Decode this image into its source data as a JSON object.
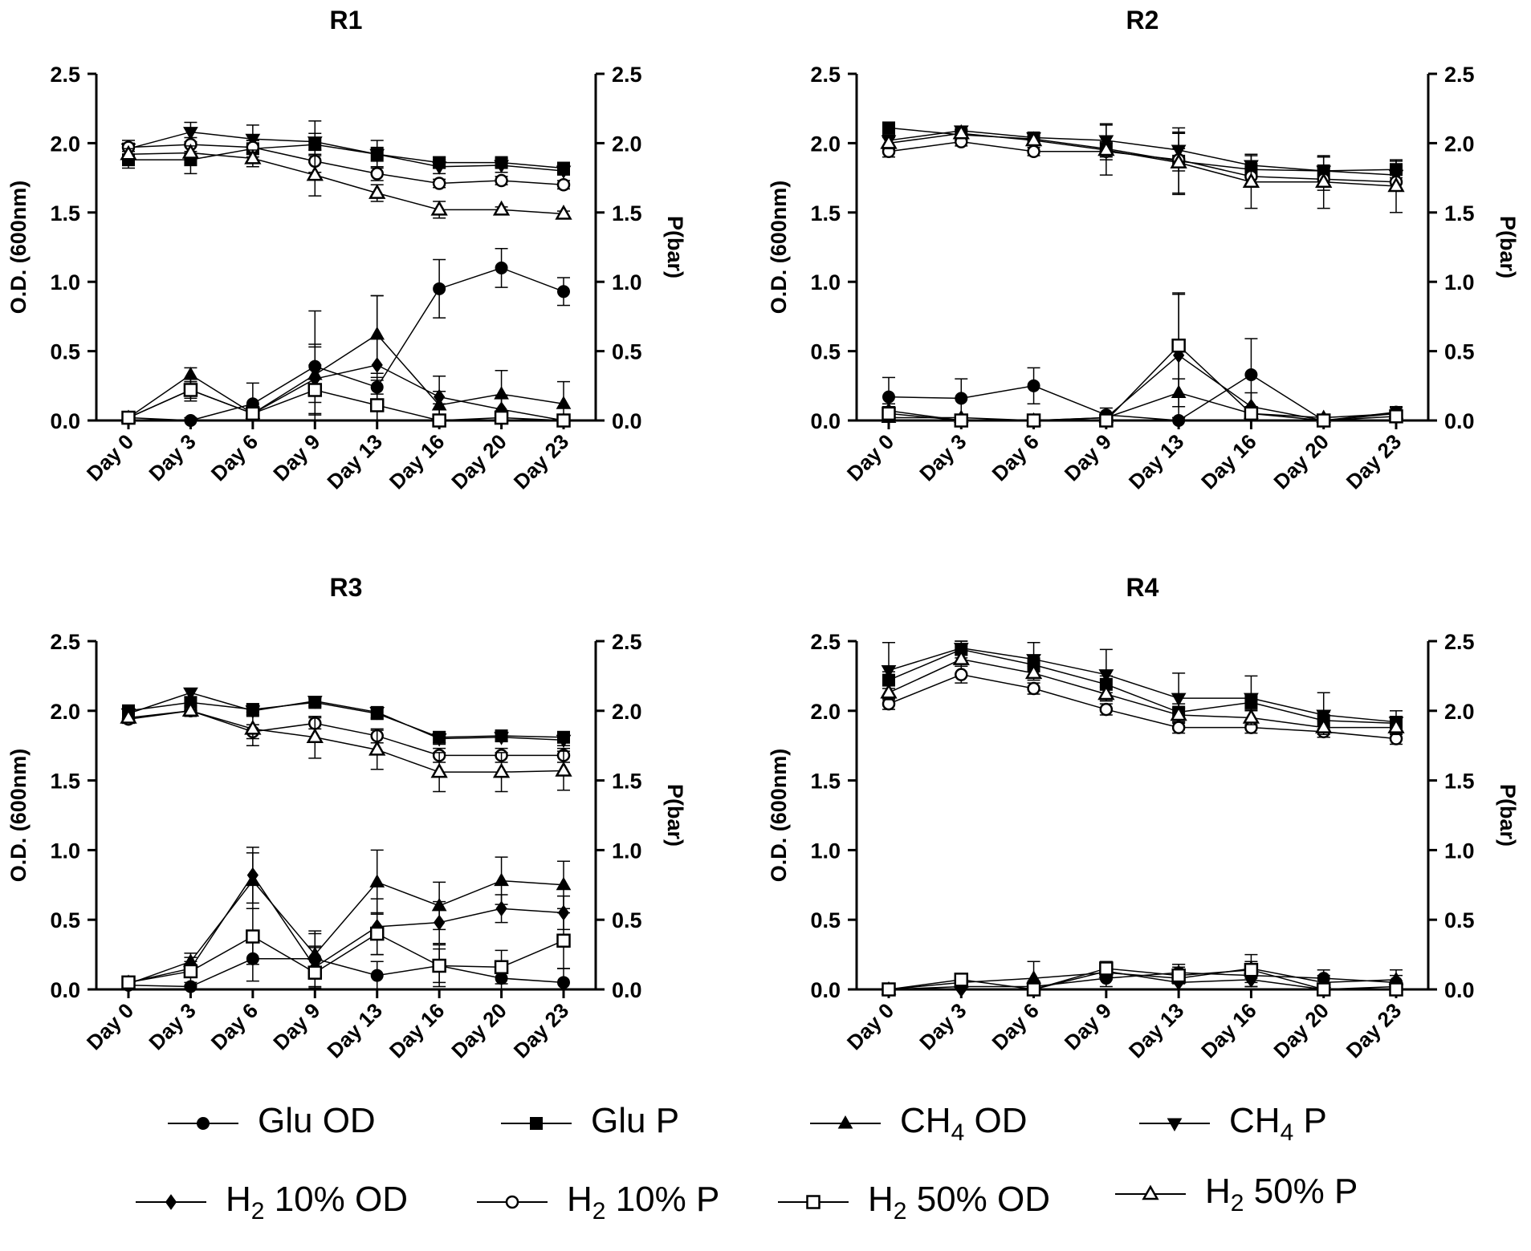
{
  "chart_data": [
    {
      "type": "line",
      "title": "R1",
      "xlabel": "",
      "ylabel": "O.D. (600nm)",
      "y2label": "P(bar)",
      "ylim": [
        0,
        2.5
      ],
      "y2lim": [
        0,
        2.5
      ],
      "yticks": [
        "0.0",
        "0.5",
        "1.0",
        "1.5",
        "2.0",
        "2.5"
      ],
      "categories": [
        "Day 0",
        "Day 3",
        "Day 6",
        "Day 9",
        "Day 13",
        "Day 16",
        "Day 20",
        "Day 23"
      ],
      "series": [
        {
          "name": "Glu OD",
          "marker": "circle",
          "values": [
            0.02,
            0.0,
            0.12,
            0.39,
            0.24,
            0.95,
            1.1,
            0.93
          ],
          "errors": [
            0.02,
            0.02,
            0.15,
            0.4,
            0.05,
            0.21,
            0.14,
            0.1
          ]
        },
        {
          "name": "Glu P",
          "marker": "square",
          "values": [
            1.88,
            1.88,
            1.96,
            1.99,
            1.92,
            1.86,
            1.86,
            1.82
          ],
          "errors": [
            0.06,
            0.1,
            0.06,
            0.08,
            0.05,
            0.04,
            0.03,
            0.03
          ]
        },
        {
          "name": "CH4 OD",
          "marker": "triangle-up",
          "values": [
            0.02,
            0.33,
            0.05,
            0.33,
            0.62,
            0.11,
            0.19,
            0.12
          ],
          "errors": [
            0.02,
            0.05,
            0.05,
            0.2,
            0.28,
            0.1,
            0.17,
            0.16
          ]
        },
        {
          "name": "CH4 P",
          "marker": "triangle-down",
          "values": [
            1.96,
            2.08,
            2.03,
            2.01,
            1.92,
            1.83,
            1.84,
            1.8
          ],
          "errors": [
            0.04,
            0.07,
            0.1,
            0.15,
            0.1,
            0.05,
            0.05,
            0.03
          ]
        },
        {
          "name": "H2 10% OD",
          "marker": "diamond",
          "values": [
            0.02,
            0.22,
            0.05,
            0.3,
            0.4,
            0.17,
            0.08,
            0.0
          ],
          "errors": [
            0.02,
            0.06,
            0.05,
            0.25,
            0.5,
            0.15,
            0.1,
            0.03
          ]
        },
        {
          "name": "H2 10% P",
          "marker": "circle-open",
          "values": [
            1.97,
            1.99,
            1.97,
            1.87,
            1.78,
            1.71,
            1.73,
            1.7
          ],
          "errors": [
            0.05,
            0.05,
            0.05,
            0.08,
            0.05,
            0.03,
            0.03,
            0.03
          ]
        },
        {
          "name": "H2 50% OD",
          "marker": "square-open",
          "values": [
            0.02,
            0.22,
            0.05,
            0.22,
            0.11,
            0.0,
            0.02,
            0.0
          ],
          "errors": [
            0.02,
            0.08,
            0.05,
            0.18,
            0.2,
            0.12,
            0.05,
            0.03
          ]
        },
        {
          "name": "H2 50% P",
          "marker": "triangle-open",
          "values": [
            1.92,
            1.93,
            1.89,
            1.77,
            1.64,
            1.52,
            1.52,
            1.49
          ],
          "errors": [
            0.04,
            0.05,
            0.06,
            0.15,
            0.06,
            0.06,
            0.02,
            0.02
          ]
        }
      ]
    },
    {
      "type": "line",
      "title": "R2",
      "xlabel": "",
      "ylabel": "O.D. (600nm)",
      "y2label": "P(bar)",
      "ylim": [
        0,
        2.5
      ],
      "y2lim": [
        0,
        2.5
      ],
      "yticks": [
        "0.0",
        "0.5",
        "1.0",
        "1.5",
        "2.0",
        "2.5"
      ],
      "categories": [
        "Day 0",
        "Day 3",
        "Day 6",
        "Day 9",
        "Day 13",
        "Day 16",
        "Day 20",
        "Day 23"
      ],
      "series": [
        {
          "name": "Glu OD",
          "marker": "circle",
          "values": [
            0.17,
            0.16,
            0.25,
            0.04,
            0.0,
            0.33,
            0.0,
            0.06
          ],
          "errors": [
            0.14,
            0.14,
            0.13,
            0.05,
            0.02,
            0.26,
            0.02,
            0.04
          ]
        },
        {
          "name": "Glu P",
          "marker": "square",
          "values": [
            2.11,
            2.06,
            2.03,
            1.96,
            1.87,
            1.81,
            1.8,
            1.81
          ],
          "errors": [
            0.04,
            0.03,
            0.04,
            0.05,
            0.24,
            0.06,
            0.1,
            0.06
          ]
        },
        {
          "name": "CH4 OD",
          "marker": "triangle-up",
          "values": [
            0.02,
            0.02,
            0.0,
            0.02,
            0.2,
            0.05,
            0.02,
            0.05
          ],
          "errors": [
            0.02,
            0.02,
            0.02,
            0.02,
            0.1,
            0.05,
            0.02,
            0.04
          ]
        },
        {
          "name": "CH4 P",
          "marker": "triangle-down",
          "values": [
            2.02,
            2.09,
            2.04,
            2.02,
            1.95,
            1.84,
            1.8,
            1.77
          ],
          "errors": [
            0.04,
            0.03,
            0.04,
            0.12,
            0.12,
            0.08,
            0.1,
            0.06
          ]
        },
        {
          "name": "H2 10% OD",
          "marker": "diamond",
          "values": [
            0.07,
            0.0,
            0.0,
            0.02,
            0.47,
            0.1,
            0.0,
            0.05
          ],
          "errors": [
            0.05,
            0.02,
            0.02,
            0.02,
            0.45,
            0.1,
            0.02,
            0.04
          ]
        },
        {
          "name": "H2 10% P",
          "marker": "circle-open",
          "values": [
            1.94,
            2.01,
            1.94,
            1.94,
            1.88,
            1.76,
            1.74,
            1.72
          ],
          "errors": [
            0.04,
            0.03,
            0.03,
            0.06,
            0.08,
            0.06,
            0.08,
            0.05
          ]
        },
        {
          "name": "H2 50% OD",
          "marker": "square-open",
          "values": [
            0.05,
            0.0,
            0.0,
            0.0,
            0.54,
            0.05,
            0.0,
            0.03
          ],
          "errors": [
            0.05,
            0.02,
            0.02,
            0.02,
            0.37,
            0.05,
            0.02,
            0.04
          ]
        },
        {
          "name": "H2 50% P",
          "marker": "triangle-open",
          "values": [
            2.0,
            2.07,
            2.02,
            1.95,
            1.86,
            1.72,
            1.72,
            1.69
          ],
          "errors": [
            0.04,
            0.03,
            0.03,
            0.18,
            0.22,
            0.19,
            0.19,
            0.19
          ]
        }
      ]
    },
    {
      "type": "line",
      "title": "R3",
      "xlabel": "",
      "ylabel": "O.D. (600nm)",
      "y2label": "P(bar)",
      "ylim": [
        0,
        2.5
      ],
      "y2lim": [
        0,
        2.5
      ],
      "yticks": [
        "0.0",
        "0.5",
        "1.0",
        "1.5",
        "2.0",
        "2.5"
      ],
      "categories": [
        "Day 0",
        "Day 3",
        "Day 6",
        "Day 9",
        "Day 13",
        "Day 16",
        "Day 20",
        "Day 23"
      ],
      "series": [
        {
          "name": "Glu OD",
          "marker": "circle",
          "values": [
            0.03,
            0.02,
            0.22,
            0.22,
            0.1,
            0.17,
            0.08,
            0.05
          ],
          "errors": [
            0.02,
            0.03,
            0.16,
            0.2,
            0.1,
            0.12,
            0.08,
            0.1
          ]
        },
        {
          "name": "Glu P",
          "marker": "square",
          "values": [
            2.0,
            2.06,
            2.01,
            2.06,
            1.98,
            1.81,
            1.82,
            1.81
          ],
          "errors": [
            0.03,
            0.04,
            0.04,
            0.03,
            0.04,
            0.04,
            0.03,
            0.04
          ]
        },
        {
          "name": "CH4 OD",
          "marker": "triangle-up",
          "values": [
            0.04,
            0.2,
            0.78,
            0.25,
            0.77,
            0.6,
            0.78,
            0.75
          ],
          "errors": [
            0.03,
            0.06,
            0.2,
            0.15,
            0.23,
            0.17,
            0.17,
            0.17
          ]
        },
        {
          "name": "CH4 P",
          "marker": "triangle-down",
          "values": [
            1.98,
            2.13,
            2.0,
            2.07,
            1.99,
            1.8,
            1.81,
            1.79
          ],
          "errors": [
            0.03,
            0.03,
            0.04,
            0.03,
            0.04,
            0.04,
            0.03,
            0.04
          ]
        },
        {
          "name": "H2 10% OD",
          "marker": "diamond",
          "values": [
            0.05,
            0.15,
            0.82,
            0.16,
            0.45,
            0.48,
            0.58,
            0.55
          ],
          "errors": [
            0.03,
            0.05,
            0.2,
            0.15,
            0.2,
            0.15,
            0.1,
            0.12
          ]
        },
        {
          "name": "H2 10% P",
          "marker": "circle-open",
          "values": [
            1.94,
            2.0,
            1.85,
            1.91,
            1.82,
            1.68,
            1.68,
            1.68
          ],
          "errors": [
            0.03,
            0.04,
            0.05,
            0.04,
            0.05,
            0.05,
            0.05,
            0.05
          ]
        },
        {
          "name": "H2 50% OD",
          "marker": "square-open",
          "values": [
            0.05,
            0.13,
            0.38,
            0.12,
            0.4,
            0.17,
            0.16,
            0.35
          ],
          "errors": [
            0.03,
            0.1,
            0.2,
            0.18,
            0.15,
            0.15,
            0.12,
            0.2
          ]
        },
        {
          "name": "H2 50% P",
          "marker": "triangle-open",
          "values": [
            1.95,
            2.0,
            1.87,
            1.81,
            1.72,
            1.56,
            1.56,
            1.57
          ],
          "errors": [
            0.03,
            0.03,
            0.12,
            0.15,
            0.14,
            0.14,
            0.14,
            0.14
          ]
        }
      ]
    },
    {
      "type": "line",
      "title": "R4",
      "xlabel": "",
      "ylabel": "O.D. (600nm)",
      "y2label": "P(bar)",
      "ylim": [
        0,
        2.5
      ],
      "y2lim": [
        0,
        2.5
      ],
      "yticks": [
        "0.0",
        "0.5",
        "1.0",
        "1.5",
        "2.0",
        "2.5"
      ],
      "categories": [
        "Day 0",
        "Day 3",
        "Day 6",
        "Day 9",
        "Day 13",
        "Day 16",
        "Day 20",
        "Day 23"
      ],
      "series": [
        {
          "name": "Glu OD",
          "marker": "circle",
          "values": [
            0.0,
            0.02,
            0.02,
            0.08,
            0.12,
            0.1,
            0.08,
            0.05
          ],
          "errors": [
            0.02,
            0.04,
            0.04,
            0.06,
            0.06,
            0.08,
            0.06,
            0.05
          ]
        },
        {
          "name": "Glu P",
          "marker": "square",
          "values": [
            2.22,
            2.44,
            2.33,
            2.19,
            1.99,
            2.06,
            1.93,
            1.91
          ],
          "errors": [
            0.06,
            0.06,
            0.05,
            0.06,
            0.06,
            0.05,
            0.06,
            0.05
          ]
        },
        {
          "name": "CH4 OD",
          "marker": "triangle-up",
          "values": [
            0.0,
            0.05,
            0.08,
            0.12,
            0.08,
            0.15,
            0.05,
            0.07
          ],
          "errors": [
            0.02,
            0.04,
            0.12,
            0.05,
            0.1,
            0.1,
            0.05,
            0.07
          ]
        },
        {
          "name": "CH4 P",
          "marker": "triangle-down",
          "values": [
            2.29,
            2.45,
            2.37,
            2.26,
            2.09,
            2.09,
            1.97,
            1.92
          ],
          "errors": [
            0.2,
            0.05,
            0.12,
            0.18,
            0.18,
            0.16,
            0.16,
            0.08
          ]
        },
        {
          "name": "H2 10% OD",
          "marker": "diamond",
          "values": [
            0.0,
            0.0,
            0.0,
            0.13,
            0.05,
            0.07,
            0.0,
            0.02
          ],
          "errors": [
            0.02,
            0.02,
            0.02,
            0.05,
            0.05,
            0.05,
            0.02,
            0.04
          ]
        },
        {
          "name": "H2 10% P",
          "marker": "circle-open",
          "values": [
            2.05,
            2.26,
            2.16,
            2.01,
            1.88,
            1.88,
            1.85,
            1.8
          ],
          "errors": [
            0.04,
            0.06,
            0.04,
            0.04,
            0.04,
            0.04,
            0.04,
            0.04
          ]
        },
        {
          "name": "H2 50% OD",
          "marker": "square-open",
          "values": [
            0.0,
            0.07,
            0.0,
            0.15,
            0.1,
            0.14,
            0.0,
            0.0
          ],
          "errors": [
            0.02,
            0.04,
            0.04,
            0.05,
            0.06,
            0.06,
            0.03,
            0.03
          ]
        },
        {
          "name": "H2 50% P",
          "marker": "triangle-open",
          "values": [
            2.13,
            2.37,
            2.27,
            2.12,
            1.97,
            1.95,
            1.88,
            1.88
          ],
          "errors": [
            0.05,
            0.05,
            0.05,
            0.05,
            0.05,
            0.05,
            0.05,
            0.05
          ]
        }
      ]
    }
  ],
  "legend": [
    {
      "marker": "circle",
      "main": "Glu OD",
      "sub": "",
      "rest": ""
    },
    {
      "marker": "square",
      "main": "Glu P",
      "sub": "",
      "rest": ""
    },
    {
      "marker": "triangle-up",
      "main": "CH",
      "sub": "4",
      "rest": " OD"
    },
    {
      "marker": "triangle-down",
      "main": "CH",
      "sub": "4",
      "rest": " P"
    },
    {
      "marker": "diamond",
      "main": "H",
      "sub": "2",
      "rest": " 10% OD"
    },
    {
      "marker": "circle-open",
      "main": "H",
      "sub": "2",
      "rest": " 10% P"
    },
    {
      "marker": "square-open",
      "main": "H",
      "sub": "2",
      "rest": " 50% OD"
    },
    {
      "marker": "triangle-open",
      "main": "H",
      "sub": "2",
      "rest": " 50% P"
    }
  ]
}
